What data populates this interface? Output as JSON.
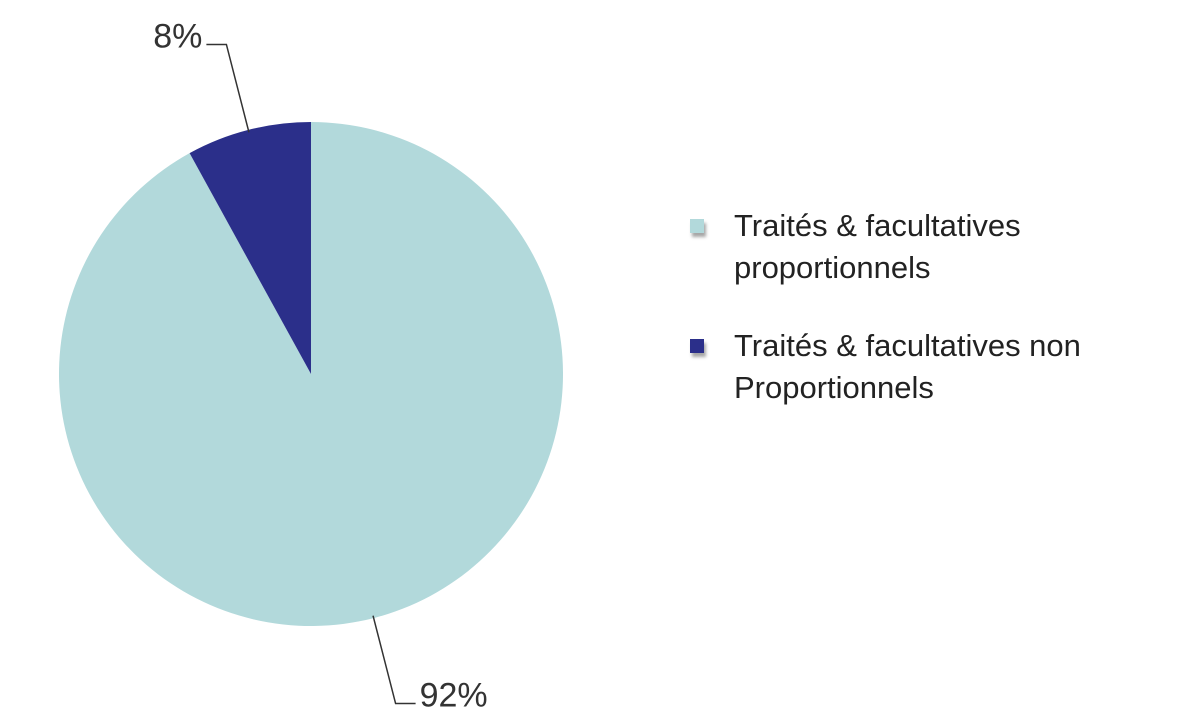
{
  "chart_data": {
    "type": "pie",
    "categories": [
      "Traités & facultatives proportionnels",
      "Traités & facultatives non Proportionnels"
    ],
    "values": [
      92,
      8
    ],
    "value_labels": [
      "92%",
      "8%"
    ],
    "colors": [
      "#b2d9db",
      "#2b2f8a"
    ],
    "legend": "right"
  }
}
